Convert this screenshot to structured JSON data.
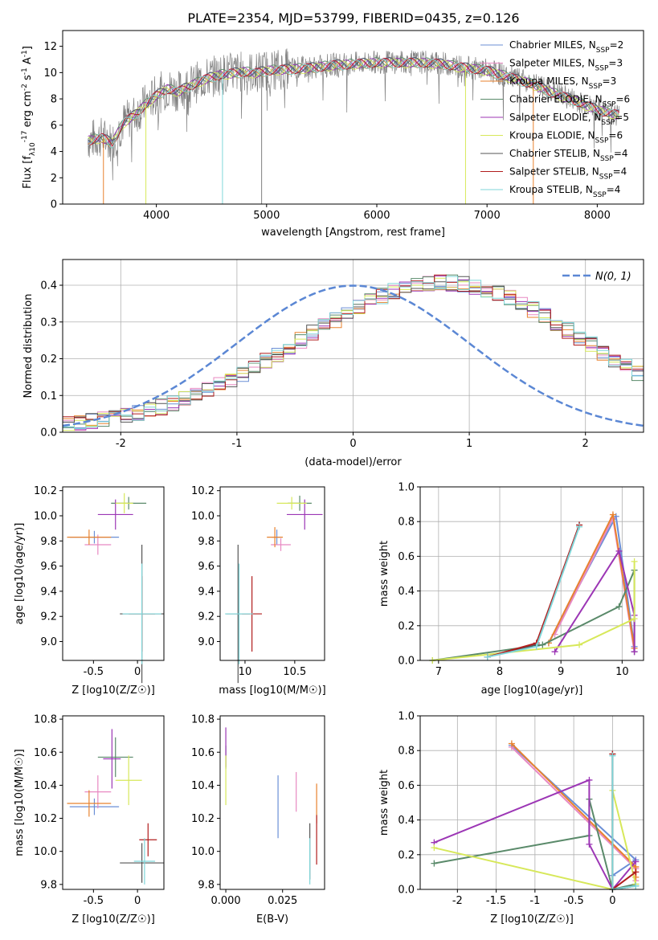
{
  "figure": {
    "title": "PLATE=2354, MJD=53799, FIBERID=0435, z=0.126"
  },
  "chart_data": [
    {
      "id": "spectrum",
      "type": "line",
      "xlabel": "wavelength [Angstrom, rest frame]",
      "ylabel": "Flux [f_λ10^-17 erg cm^-2 s^-1 A^-1]",
      "xlim": [
        3150,
        8420
      ],
      "ylim": [
        0,
        13.2
      ],
      "xticks": [
        4000,
        5000,
        6000,
        7000,
        8000
      ],
      "yticks": [
        0,
        2,
        4,
        6,
        8,
        10,
        12
      ],
      "legend_position": "top-right",
      "data_x": [
        3400,
        3500,
        3600,
        3700,
        3800,
        3900,
        4000,
        4100,
        4200,
        4300,
        4400,
        4500,
        4600,
        4700,
        4800,
        4900,
        5000,
        5200,
        5400,
        5600,
        5800,
        6000,
        6200,
        6400,
        6600,
        6800,
        7000,
        7200,
        7400,
        7600,
        7800,
        8000,
        8200
      ],
      "data_flux": [
        4.9,
        5.1,
        4.7,
        6.2,
        6.8,
        7.6,
        8.3,
        8.8,
        8.6,
        9.0,
        9.4,
        9.7,
        9.9,
        10.0,
        10.1,
        10.0,
        10.2,
        10.3,
        10.4,
        10.6,
        10.7,
        10.8,
        10.8,
        10.8,
        10.7,
        10.4,
        10.2,
        9.7,
        9.2,
        8.5,
        7.9,
        7.2,
        6.8
      ],
      "series": [
        {
          "name": "Chabrier MILES, N_SSP=2",
          "color": "#6b8fd6"
        },
        {
          "name": "Salpeter MILES, N_SSP=3",
          "color": "#e889c2"
        },
        {
          "name": "Kroupa MILES, N_SSP=3",
          "color": "#e8822e"
        },
        {
          "name": "Chabrier ELODIE, N_SSP=6",
          "color": "#5a8a6a"
        },
        {
          "name": "Salpeter ELODIE, N_SSP=5",
          "color": "#9c36b5"
        },
        {
          "name": "Kroupa ELODIE, N_SSP=6",
          "color": "#d7e85a"
        },
        {
          "name": "Chabrier STELIB, N_SSP=4",
          "color": "#555555"
        },
        {
          "name": "Salpeter STELIB, N_SSP=4",
          "color": "#b11d1d"
        },
        {
          "name": "Kroupa STELIB, N_SSP=4",
          "color": "#7fd6d9"
        }
      ]
    },
    {
      "id": "residuals",
      "type": "line",
      "xlabel": "(data-model)/error",
      "ylabel": "Normed distribution",
      "xlim": [
        -2.5,
        2.5
      ],
      "ylim": [
        0,
        0.47
      ],
      "xticks": [
        -2,
        -1,
        0,
        1,
        2
      ],
      "yticks": [
        0.0,
        0.1,
        0.2,
        0.3,
        0.4
      ],
      "grid": true,
      "legend_position": "top-right",
      "legend": "N(0, 1)",
      "bin_width": 0.1,
      "bin_start": -2.5,
      "hist_base": [
        0.02,
        0.025,
        0.03,
        0.035,
        0.04,
        0.045,
        0.052,
        0.06,
        0.068,
        0.078,
        0.09,
        0.1,
        0.115,
        0.128,
        0.145,
        0.16,
        0.175,
        0.195,
        0.212,
        0.23,
        0.25,
        0.27,
        0.288,
        0.305,
        0.325,
        0.342,
        0.358,
        0.372,
        0.385,
        0.395,
        0.4,
        0.404,
        0.407,
        0.406,
        0.403,
        0.398,
        0.39,
        0.38,
        0.368,
        0.352,
        0.335,
        0.318,
        0.298,
        0.278,
        0.258,
        0.238,
        0.218,
        0.198,
        0.18,
        0.162,
        0.144,
        0.126,
        0.11,
        0.096,
        0.082,
        0.07,
        0.06,
        0.052,
        0.044,
        0.038,
        0.032,
        0.028,
        0.025,
        0.022,
        0.02,
        0.02,
        0.02,
        0.02,
        0.02,
        0.02,
        0.02,
        0.02
      ],
      "colors": [
        "#6b8fd6",
        "#e889c2",
        "#e8822e",
        "#5a8a6a",
        "#9c36b5",
        "#d7e85a",
        "#555555",
        "#b11d1d",
        "#7fd6d9"
      ],
      "normal_color": "#5b87d4"
    },
    {
      "id": "age_vs_Z",
      "type": "scatter",
      "xlabel": "Z [log10(Z/Z☉)]",
      "ylabel": "age [log10(age/yr)]",
      "xlim": [
        -0.85,
        0.3
      ],
      "ylim": [
        8.85,
        10.23
      ],
      "xticks": [
        -0.5,
        0.0
      ],
      "yticks": [
        9.0,
        9.2,
        9.4,
        9.6,
        9.8,
        10.0,
        10.2
      ],
      "points": [
        {
          "x": -0.49,
          "y": 9.83,
          "ex": 0.28,
          "ey": 0.05,
          "color": "#6b8fd6"
        },
        {
          "x": -0.45,
          "y": 9.77,
          "ex": 0.15,
          "ey": 0.08,
          "color": "#e889c2"
        },
        {
          "x": -0.55,
          "y": 9.83,
          "ex": 0.25,
          "ey": 0.06,
          "color": "#e8822e"
        },
        {
          "x": -0.1,
          "y": 10.1,
          "ex": 0.2,
          "ey": 0.05,
          "color": "#5a8a6a"
        },
        {
          "x": -0.25,
          "y": 10.01,
          "ex": 0.2,
          "ey": 0.12,
          "color": "#9c36b5"
        },
        {
          "x": -0.15,
          "y": 10.1,
          "ex": 0.1,
          "ey": 0.08,
          "color": "#d7e85a"
        },
        {
          "x": 0.05,
          "y": 9.22,
          "ex": 0.25,
          "ey": 0.55,
          "color": "#555555"
        },
        {
          "x": 0.05,
          "y": 9.22,
          "ex": 0.15,
          "ey": 0.3,
          "color": "#b11d1d"
        },
        {
          "x": 0.05,
          "y": 9.22,
          "ex": 0.22,
          "ey": 0.4,
          "color": "#7fd6d9"
        }
      ]
    },
    {
      "id": "age_vs_mass",
      "type": "scatter",
      "xlabel": "mass [log10(M/M☉)]",
      "ylabel": "",
      "xlim": [
        9.75,
        10.8
      ],
      "ylim": [
        8.85,
        10.23
      ],
      "xticks": [
        10.0,
        10.5
      ],
      "yticks": [
        9.0,
        9.2,
        9.4,
        9.6,
        9.8,
        10.0,
        10.2
      ],
      "points": [
        {
          "x": 10.32,
          "y": 9.83,
          "ex": 0.05,
          "ey": 0.06,
          "color": "#6b8fd6"
        },
        {
          "x": 10.36,
          "y": 9.77,
          "ex": 0.1,
          "ey": 0.05,
          "color": "#e889c2"
        },
        {
          "x": 10.3,
          "y": 9.83,
          "ex": 0.08,
          "ey": 0.08,
          "color": "#e8822e"
        },
        {
          "x": 10.55,
          "y": 10.1,
          "ex": 0.12,
          "ey": 0.06,
          "color": "#5a8a6a"
        },
        {
          "x": 10.6,
          "y": 10.01,
          "ex": 0.18,
          "ey": 0.12,
          "color": "#9c36b5"
        },
        {
          "x": 10.47,
          "y": 10.1,
          "ex": 0.15,
          "ey": 0.05,
          "color": "#d7e85a"
        },
        {
          "x": 9.93,
          "y": 9.22,
          "ex": 0.12,
          "ey": 0.55,
          "color": "#555555"
        },
        {
          "x": 10.07,
          "y": 9.22,
          "ex": 0.1,
          "ey": 0.3,
          "color": "#b11d1d"
        },
        {
          "x": 9.94,
          "y": 9.22,
          "ex": 0.14,
          "ey": 0.4,
          "color": "#7fd6d9"
        }
      ]
    },
    {
      "id": "weight_vs_age",
      "type": "line",
      "xlabel": "age [log10(age/yr)]",
      "ylabel": "mass weight",
      "xlim": [
        6.7,
        10.35
      ],
      "ylim": [
        0,
        1.0
      ],
      "xticks": [
        7,
        8,
        9,
        10
      ],
      "yticks": [
        0.0,
        0.2,
        0.4,
        0.6,
        0.8,
        1.0
      ],
      "grid": true,
      "series": [
        {
          "color": "#6b8fd6",
          "x": [
            8.8,
            9.9,
            10.2
          ],
          "y": [
            0.1,
            0.83,
            0.08
          ]
        },
        {
          "color": "#e889c2",
          "x": [
            8.9,
            9.85,
            10.2
          ],
          "y": [
            0.15,
            0.82,
            0.05
          ]
        },
        {
          "color": "#e8822e",
          "x": [
            8.8,
            9.85,
            10.2
          ],
          "y": [
            0.1,
            0.84,
            0.07
          ]
        },
        {
          "color": "#5a8a6a",
          "x": [
            6.9,
            8.7,
            9.95,
            10.2,
            10.2
          ],
          "y": [
            0.0,
            0.09,
            0.31,
            0.52,
            0.05
          ]
        },
        {
          "color": "#9c36b5",
          "x": [
            8.9,
            9.95,
            10.2,
            10.2
          ],
          "y": [
            0.05,
            0.63,
            0.26,
            0.05
          ]
        },
        {
          "color": "#d7e85a",
          "x": [
            6.9,
            9.3,
            10.2,
            10.2
          ],
          "y": [
            0.0,
            0.09,
            0.24,
            0.57
          ]
        },
        {
          "color": "#555555",
          "x": [
            7.8,
            8.6,
            9.3
          ],
          "y": [
            0.02,
            0.09,
            0.78
          ]
        },
        {
          "color": "#b11d1d",
          "x": [
            7.8,
            8.6,
            9.3
          ],
          "y": [
            0.02,
            0.1,
            0.78
          ]
        },
        {
          "color": "#7fd6d9",
          "x": [
            7.8,
            8.6,
            9.3
          ],
          "y": [
            0.02,
            0.08,
            0.77
          ]
        }
      ]
    },
    {
      "id": "mass_vs_Z",
      "type": "scatter",
      "xlabel": "Z [log10(Z/Z☉)]",
      "ylabel": "mass [log10(M/M☉)]",
      "xlim": [
        -0.85,
        0.3
      ],
      "ylim": [
        9.77,
        10.82
      ],
      "xticks": [
        -0.5,
        0.0
      ],
      "yticks": [
        9.8,
        10.0,
        10.2,
        10.4,
        10.6,
        10.8
      ],
      "points": [
        {
          "x": -0.49,
          "y": 10.27,
          "ex": 0.28,
          "ey": 0.05,
          "color": "#6b8fd6"
        },
        {
          "x": -0.45,
          "y": 10.36,
          "ex": 0.15,
          "ey": 0.1,
          "color": "#e889c2"
        },
        {
          "x": -0.55,
          "y": 10.29,
          "ex": 0.25,
          "ey": 0.08,
          "color": "#e8822e"
        },
        {
          "x": -0.25,
          "y": 10.57,
          "ex": 0.2,
          "ey": 0.12,
          "color": "#5a8a6a"
        },
        {
          "x": -0.29,
          "y": 10.56,
          "ex": 0.1,
          "ey": 0.18,
          "color": "#9c36b5"
        },
        {
          "x": -0.1,
          "y": 10.43,
          "ex": 0.15,
          "ey": 0.15,
          "color": "#d7e85a"
        },
        {
          "x": 0.05,
          "y": 9.93,
          "ex": 0.25,
          "ey": 0.12,
          "color": "#555555"
        },
        {
          "x": 0.12,
          "y": 10.07,
          "ex": 0.1,
          "ey": 0.1,
          "color": "#b11d1d"
        },
        {
          "x": 0.08,
          "y": 9.94,
          "ex": 0.12,
          "ey": 0.14,
          "color": "#7fd6d9"
        }
      ]
    },
    {
      "id": "mass_vs_EBV",
      "type": "scatter",
      "xlabel": "E(B-V)",
      "ylabel": "",
      "xlim": [
        -0.0025,
        0.0435
      ],
      "ylim": [
        9.77,
        10.82
      ],
      "xticks": [
        0.0,
        0.025
      ],
      "xticklabels": [
        "0.000",
        "0.025"
      ],
      "yticks": [
        9.8,
        10.0,
        10.2,
        10.4,
        10.6,
        10.8
      ],
      "points": [
        {
          "x": 0.023,
          "y": 10.27,
          "ex": 0,
          "ey": 0.19,
          "color": "#6b8fd6"
        },
        {
          "x": 0.031,
          "y": 10.36,
          "ex": 0,
          "ey": 0.12,
          "color": "#e889c2"
        },
        {
          "x": 0.04,
          "y": 10.29,
          "ex": 0,
          "ey": 0.12,
          "color": "#e8822e"
        },
        {
          "x": 0.0,
          "y": 10.57,
          "ex": 0,
          "ey": 0.07,
          "color": "#5a8a6a"
        },
        {
          "x": 0.0,
          "y": 10.63,
          "ex": 0,
          "ey": 0.12,
          "color": "#9c36b5"
        },
        {
          "x": 0.0,
          "y": 10.43,
          "ex": 0,
          "ey": 0.15,
          "color": "#d7e85a"
        },
        {
          "x": 0.037,
          "y": 10.0,
          "ex": 0,
          "ey": 0.17,
          "color": "#555555"
        },
        {
          "x": 0.04,
          "y": 10.07,
          "ex": 0,
          "ey": 0.15,
          "color": "#b11d1d"
        },
        {
          "x": 0.037,
          "y": 9.94,
          "ex": 0,
          "ey": 0.14,
          "color": "#7fd6d9"
        }
      ]
    },
    {
      "id": "weight_vs_Z",
      "type": "line",
      "xlabel": "Z [log10(Z/Z☉)]",
      "ylabel": "mass weight",
      "xlim": [
        -2.48,
        0.4
      ],
      "ylim": [
        0,
        1.0
      ],
      "xticks": [
        -2.0,
        -1.5,
        -1.0,
        -0.5,
        0.0
      ],
      "yticks": [
        0.0,
        0.2,
        0.4,
        0.6,
        0.8,
        1.0
      ],
      "grid": true,
      "series": [
        {
          "color": "#6b8fd6",
          "x": [
            -1.3,
            0.3,
            0.0
          ],
          "y": [
            0.83,
            0.17,
            0.08
          ]
        },
        {
          "color": "#e889c2",
          "x": [
            -1.3,
            0.3,
            0.3
          ],
          "y": [
            0.82,
            0.12,
            0.05
          ]
        },
        {
          "color": "#e8822e",
          "x": [
            -1.3,
            0.3,
            0.3
          ],
          "y": [
            0.84,
            0.13,
            0.07
          ]
        },
        {
          "color": "#5a8a6a",
          "x": [
            -2.3,
            -0.3,
            -0.3,
            0.0,
            0.3
          ],
          "y": [
            0.15,
            0.31,
            0.52,
            0.0,
            0.03
          ]
        },
        {
          "color": "#9c36b5",
          "x": [
            -2.3,
            -0.3,
            -0.3,
            0.0,
            0.3
          ],
          "y": [
            0.27,
            0.63,
            0.26,
            0.0,
            0.16
          ]
        },
        {
          "color": "#d7e85a",
          "x": [
            -2.3,
            0.0,
            0.0,
            0.3
          ],
          "y": [
            0.24,
            0.0,
            0.57,
            0.03
          ]
        },
        {
          "color": "#555555",
          "x": [
            0.0,
            0.0,
            0.3
          ],
          "y": [
            0.78,
            0.0,
            0.02
          ]
        },
        {
          "color": "#b11d1d",
          "x": [
            0.0,
            0.0,
            0.3
          ],
          "y": [
            0.78,
            0.0,
            0.1
          ]
        },
        {
          "color": "#7fd6d9",
          "x": [
            0.0,
            0.0,
            0.3
          ],
          "y": [
            0.77,
            0.0,
            0.02
          ]
        }
      ]
    }
  ]
}
